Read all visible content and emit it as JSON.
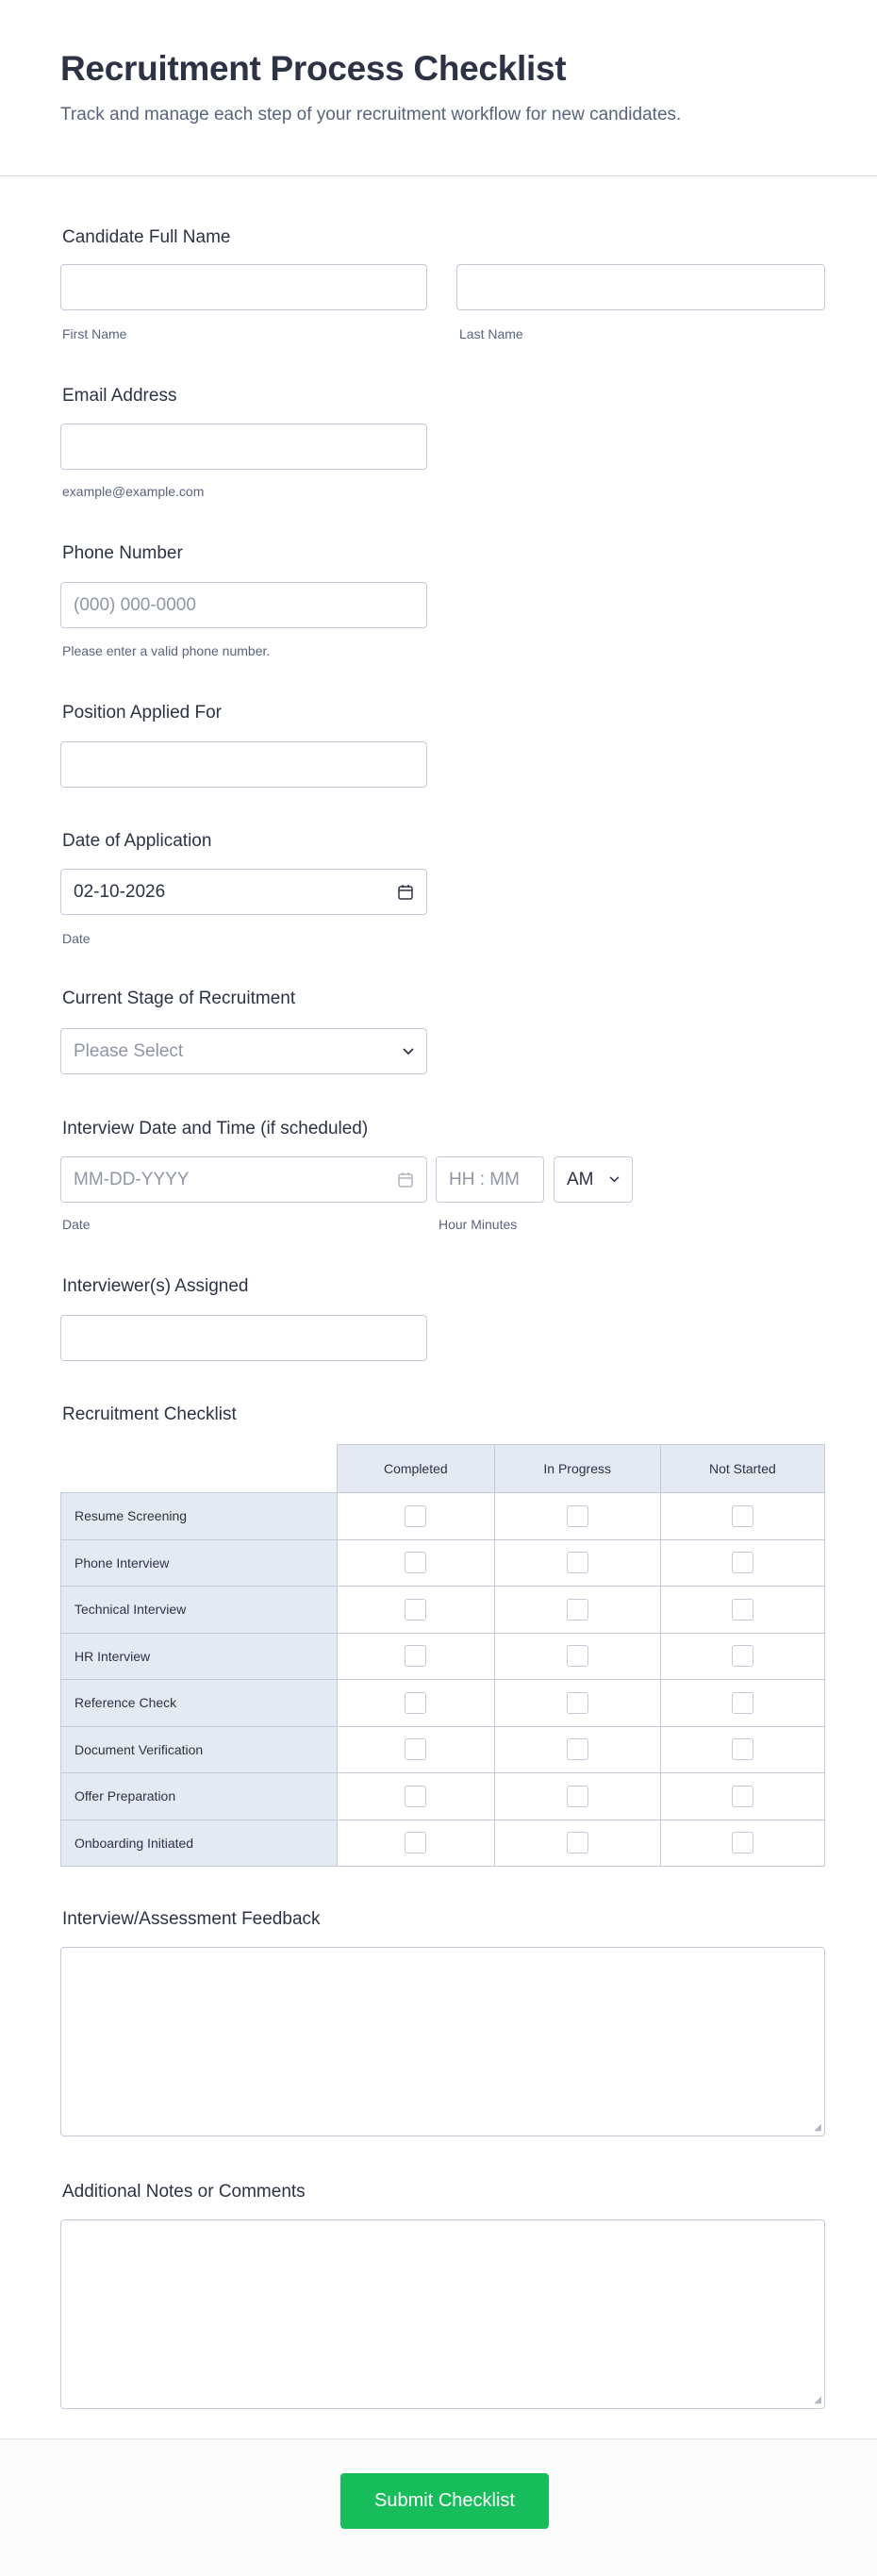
{
  "header": {
    "title": "Recruitment Process Checklist",
    "subtitle": "Track and manage each step of your recruitment workflow for new candidates."
  },
  "fields": {
    "name": {
      "label": "Candidate Full Name",
      "first_sublabel": "First Name",
      "last_sublabel": "Last Name",
      "first_value": "",
      "last_value": ""
    },
    "email": {
      "label": "Email Address",
      "sublabel": "example@example.com",
      "value": ""
    },
    "phone": {
      "label": "Phone Number",
      "placeholder": "(000) 000-0000",
      "sublabel": "Please enter a valid phone number."
    },
    "position": {
      "label": "Position Applied For",
      "value": ""
    },
    "app_date": {
      "label": "Date of Application",
      "value": "02-10-2026",
      "sublabel": "Date",
      "icon": "calendar-icon"
    },
    "stage": {
      "label": "Current Stage of Recruitment",
      "placeholder": "Please Select",
      "icon": "chevron-down-icon"
    },
    "interview": {
      "label": "Interview Date and Time (if scheduled)",
      "date_placeholder": "MM-DD-YYYY",
      "time_placeholder": "HH : MM",
      "ampm": "AM",
      "date_sublabel": "Date",
      "time_sublabel": "Hour Minutes"
    },
    "interviewers": {
      "label": "Interviewer(s) Assigned",
      "value": ""
    },
    "feedback": {
      "label": "Interview/Assessment Feedback"
    },
    "notes": {
      "label": "Additional Notes or Comments"
    }
  },
  "checklist": {
    "label": "Recruitment Checklist",
    "columns": [
      "Completed",
      "In Progress",
      "Not Started"
    ],
    "rows": [
      "Resume Screening",
      "Phone Interview",
      "Technical Interview",
      "HR Interview",
      "Reference Check",
      "Document Verification",
      "Offer Preparation",
      "Onboarding Initiated"
    ]
  },
  "submit": {
    "label": "Submit Checklist",
    "color": "#18bd5b"
  }
}
